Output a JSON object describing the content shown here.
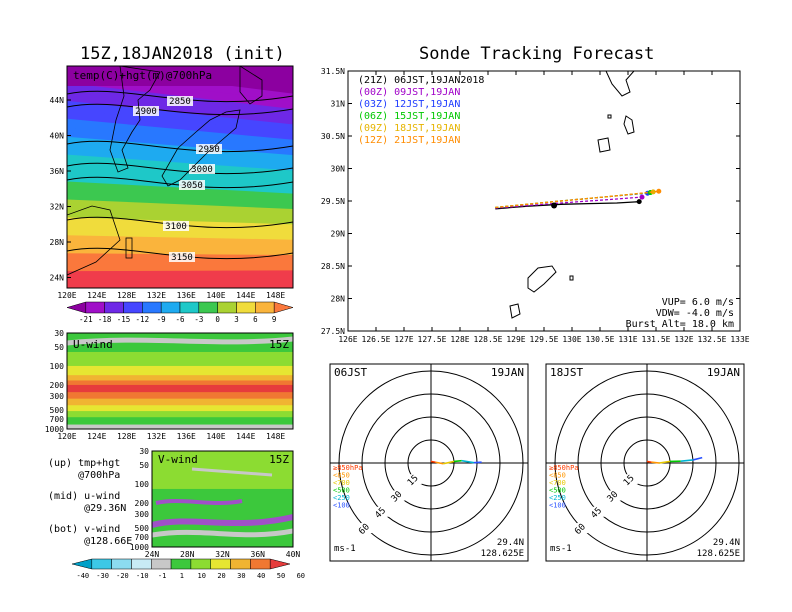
{
  "left": {
    "title": "15Z,18JAN2018 (init)",
    "map": {
      "label": "temp(C)+hgt(m)@700hPa",
      "lat_ticks": [
        "44N",
        "40N",
        "36N",
        "32N",
        "28N",
        "24N"
      ],
      "lon_ticks": [
        "120E",
        "124E",
        "128E",
        "132E",
        "136E",
        "140E",
        "144E",
        "148E"
      ],
      "contour_labels": [
        "2850",
        "2900",
        "2950",
        "3000",
        "3050",
        "3100",
        "3150"
      ]
    },
    "temp_colorbar": [
      "-21",
      "-18",
      "-15",
      "-12",
      "-9",
      "-6",
      "-3",
      "0",
      "3",
      "6",
      "9"
    ],
    "uwind": {
      "label": "U-wind",
      "time": "15Z",
      "p_ticks": [
        "30",
        "50",
        "100",
        "200",
        "300",
        "500",
        "700",
        "1000"
      ],
      "lon_ticks": [
        "120E",
        "124E",
        "128E",
        "132E",
        "136E",
        "140E",
        "144E",
        "148E"
      ]
    },
    "vwind": {
      "label": "V-wind",
      "time": "15Z",
      "p_ticks": [
        "30",
        "50",
        "100",
        "200",
        "300",
        "500",
        "700",
        "1000"
      ],
      "lat_ticks": [
        "24N",
        "28N",
        "32N",
        "36N",
        "40N"
      ]
    },
    "wind_colorbar": [
      "-40",
      "-30",
      "-20",
      "-10",
      "-1",
      "1",
      "10",
      "20",
      "30",
      "40",
      "50",
      "60"
    ],
    "notes": {
      "up": "(up) tmp+hgt\n     @700hPa",
      "mid": "(mid) u-wind\n      @29.36N",
      "bot": "(bot) v-wind\n      @128.66E"
    }
  },
  "track": {
    "title": "Sonde Tracking Forecast",
    "lat_ticks": [
      "31.5N",
      "31N",
      "30.5N",
      "30N",
      "29.5N",
      "29N",
      "28.5N",
      "28N",
      "27.5N"
    ],
    "lon_ticks": [
      "126E",
      "126.5E",
      "127E",
      "127.5E",
      "128E",
      "128.5E",
      "129E",
      "129.5E",
      "130E",
      "130.5E",
      "131E",
      "131.5E",
      "132E",
      "132.5E",
      "133E"
    ],
    "legend": [
      {
        "text": "(21Z) 06JST,19JAN2018",
        "color": "#000000"
      },
      {
        "text": "(00Z) 09JST,19JAN",
        "color": "#a000c8"
      },
      {
        "text": "(03Z) 12JST,19JAN",
        "color": "#1e3cff"
      },
      {
        "text": "(06Z) 15JST,19JAN",
        "color": "#00c800"
      },
      {
        "text": "(09Z) 18JST,19JAN",
        "color": "#e6b400"
      },
      {
        "text": "(12Z) 21JST,19JAN",
        "color": "#ff8c00"
      }
    ],
    "params": [
      "VUP=  6.0 m/s",
      "VDW= -4.0 m/s",
      "Burst Alt= 18.0 km"
    ]
  },
  "hodographs": [
    {
      "time": "06JST",
      "date": "19JAN",
      "lat": "29.4N",
      "lon": "128.625E",
      "unit": "ms-1"
    },
    {
      "time": "18JST",
      "date": "19JAN",
      "lat": "29.4N",
      "lon": "128.625E",
      "unit": "ms-1"
    }
  ],
  "hodo_rings": [
    "15",
    "30",
    "45",
    "60"
  ],
  "hodo_levels": [
    {
      "text": "≥850hPa",
      "color": "#ff3c00"
    },
    {
      "text": "<850",
      "color": "#ff9600"
    },
    {
      "text": "<700",
      "color": "#e6c800"
    },
    {
      "text": "<500",
      "color": "#00c800"
    },
    {
      "text": "<250",
      "color": "#00b4d2"
    },
    {
      "text": "<100",
      "color": "#2850ff"
    }
  ],
  "chart_data": [
    {
      "type": "heatmap",
      "title": "15Z,18JAN2018 (init)",
      "subtitle": "temp(C)+hgt(m)@700hPa",
      "xlim": [
        120,
        150
      ],
      "ylim": [
        22,
        48
      ],
      "contour_levels_m": [
        2850,
        2900,
        2950,
        3000,
        3050,
        3100,
        3150
      ],
      "colorbar_C": [
        -21,
        -18,
        -15,
        -12,
        -9,
        -6,
        -3,
        0,
        3,
        6,
        9
      ]
    },
    {
      "type": "heatmap",
      "title": "U-wind",
      "x_range_E": [
        120,
        150
      ],
      "p_range_hPa": [
        1000,
        30
      ]
    },
    {
      "type": "heatmap",
      "title": "V-wind",
      "x_range_N": [
        24,
        40
      ],
      "p_range_hPa": [
        1000,
        30
      ]
    },
    {
      "type": "line",
      "title": "Sonde Tracking Forecast",
      "xlim": [
        126,
        133
      ],
      "ylim": [
        27.5,
        31.5
      ],
      "series": [
        {
          "name": "(21Z) 06JST,19JAN2018",
          "color": "#000000",
          "points": [
            [
              128.63,
              29.38
            ],
            [
              129.2,
              29.42
            ],
            [
              129.8,
              29.45
            ],
            [
              130.3,
              29.46
            ],
            [
              130.8,
              29.47
            ],
            [
              131.2,
              29.49
            ]
          ]
        },
        {
          "name": "(00Z) 09JST,19JAN",
          "color": "#a000c8",
          "points": [
            [
              128.63,
              29.39
            ],
            [
              129.2,
              29.43
            ],
            [
              129.8,
              29.47
            ],
            [
              130.3,
              29.5
            ],
            [
              130.8,
              29.53
            ],
            [
              131.25,
              29.56
            ]
          ]
        },
        {
          "name": "(03Z) 12JST,19JAN",
          "color": "#1e3cff",
          "points": [
            [
              128.63,
              29.4
            ],
            [
              129.2,
              29.45
            ],
            [
              129.8,
              29.5
            ],
            [
              130.3,
              29.54
            ],
            [
              130.8,
              29.58
            ],
            [
              131.35,
              29.62
            ]
          ]
        },
        {
          "name": "(06Z) 15JST,19JAN",
          "color": "#00c800",
          "points": [
            [
              128.63,
              29.4
            ],
            [
              129.2,
              29.45
            ],
            [
              129.8,
              29.5
            ],
            [
              130.3,
              29.54
            ],
            [
              130.8,
              29.58
            ],
            [
              131.4,
              29.63
            ]
          ]
        },
        {
          "name": "(09Z) 18JST,19JAN",
          "color": "#e6b400",
          "points": [
            [
              128.63,
              29.4
            ],
            [
              129.2,
              29.45
            ],
            [
              129.8,
              29.5
            ],
            [
              130.3,
              29.54
            ],
            [
              130.8,
              29.58
            ],
            [
              131.45,
              29.64
            ]
          ]
        },
        {
          "name": "(12Z) 21JST,19JAN",
          "color": "#ff8c00",
          "points": [
            [
              128.63,
              29.4
            ],
            [
              129.2,
              29.45
            ],
            [
              129.8,
              29.5
            ],
            [
              130.3,
              29.54
            ],
            [
              130.8,
              29.58
            ],
            [
              131.55,
              29.65
            ]
          ]
        }
      ]
    },
    {
      "type": "line",
      "title": "06JST 19JAN",
      "rings_ms": [
        15,
        30,
        45,
        60
      ],
      "series": [
        {
          "name": "hodograph",
          "points": [
            [
              0,
              1
            ],
            [
              3,
              0.5
            ],
            [
              8,
              -0.5
            ],
            [
              15,
              1
            ],
            [
              20,
              1.5
            ],
            [
              28,
              0.2
            ],
            [
              33,
              0.5
            ]
          ]
        }
      ]
    },
    {
      "type": "line",
      "title": "18JST 19JAN",
      "rings_ms": [
        15,
        30,
        45,
        60
      ],
      "series": [
        {
          "name": "hodograph",
          "points": [
            [
              0,
              1
            ],
            [
              3,
              0.5
            ],
            [
              8,
              0
            ],
            [
              15,
              1
            ],
            [
              22,
              1.2
            ],
            [
              30,
              2
            ],
            [
              36,
              3.5
            ]
          ]
        }
      ]
    }
  ]
}
